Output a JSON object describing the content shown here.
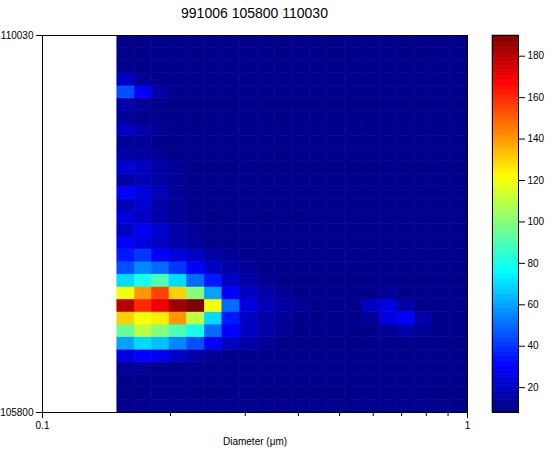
{
  "chart_data": {
    "type": "heatmap",
    "title": "991006 105800 110030",
    "x_label": "Diameter (μm)",
    "log": "x",
    "xlim": [
      0.1,
      1
    ],
    "xticks": [
      0.1,
      1
    ],
    "ylim": [
      105800,
      110030
    ],
    "yticks": [
      105800,
      110030
    ],
    "x_bins": [
      0.15,
      0.165,
      0.181,
      0.199,
      0.219,
      0.241,
      0.265,
      0.292,
      0.321,
      0.353,
      0.387,
      0.426,
      0.468,
      0.515,
      0.566,
      0.622,
      0.684,
      0.752,
      0.827,
      0.909,
      1.0
    ],
    "y_bins": [
      105800,
      105941,
      106082,
      106223,
      106364,
      106505,
      106646,
      106787,
      106928,
      107069,
      107210,
      107351,
      107492,
      107633,
      107774,
      107915,
      108056,
      108197,
      108338,
      108479,
      108620,
      108761,
      108902,
      109043,
      109184,
      109325,
      109466,
      109607,
      109748,
      109889,
      110030
    ],
    "z": [
      [
        10,
        10,
        10,
        10,
        10,
        10,
        10,
        10,
        10,
        10,
        10,
        10,
        10,
        10,
        10,
        10,
        10,
        10,
        10,
        10
      ],
      [
        10,
        10,
        10,
        10,
        10,
        10,
        10,
        10,
        10,
        10,
        10,
        10,
        10,
        10,
        10,
        10,
        10,
        10,
        10,
        10
      ],
      [
        10,
        10,
        10,
        10,
        10,
        10,
        10,
        10,
        10,
        10,
        10,
        10,
        10,
        10,
        10,
        10,
        10,
        10,
        10,
        10
      ],
      [
        12,
        12,
        10,
        10,
        10,
        10,
        10,
        10,
        10,
        10,
        10,
        10,
        10,
        10,
        10,
        10,
        10,
        10,
        10,
        10
      ],
      [
        25,
        30,
        28,
        20,
        15,
        12,
        10,
        10,
        10,
        10,
        10,
        10,
        10,
        10,
        10,
        10,
        10,
        10,
        10,
        10
      ],
      [
        60,
        70,
        65,
        55,
        45,
        30,
        20,
        15,
        12,
        10,
        10,
        10,
        10,
        10,
        10,
        10,
        10,
        10,
        10,
        10
      ],
      [
        95,
        110,
        100,
        90,
        80,
        50,
        30,
        20,
        15,
        12,
        10,
        10,
        10,
        10,
        10,
        12,
        15,
        12,
        10,
        10
      ],
      [
        130,
        120,
        125,
        140,
        110,
        70,
        35,
        20,
        15,
        12,
        10,
        10,
        10,
        10,
        12,
        25,
        30,
        15,
        10,
        10
      ],
      [
        180,
        160,
        170,
        185,
        190,
        120,
        50,
        25,
        18,
        14,
        12,
        10,
        10,
        10,
        20,
        25,
        15,
        10,
        10,
        10
      ],
      [
        120,
        140,
        155,
        130,
        100,
        60,
        30,
        20,
        15,
        12,
        10,
        10,
        10,
        10,
        10,
        12,
        10,
        10,
        10,
        10
      ],
      [
        70,
        80,
        90,
        70,
        50,
        35,
        20,
        15,
        12,
        10,
        10,
        10,
        10,
        10,
        10,
        10,
        10,
        10,
        10,
        10
      ],
      [
        45,
        55,
        50,
        40,
        30,
        20,
        15,
        12,
        10,
        10,
        10,
        10,
        10,
        10,
        10,
        10,
        10,
        10,
        10,
        10
      ],
      [
        35,
        40,
        30,
        25,
        20,
        15,
        12,
        10,
        10,
        10,
        10,
        10,
        10,
        10,
        10,
        10,
        10,
        10,
        10,
        10
      ],
      [
        30,
        25,
        20,
        15,
        12,
        10,
        10,
        10,
        10,
        10,
        10,
        10,
        10,
        10,
        10,
        10,
        10,
        10,
        10,
        10
      ],
      [
        20,
        28,
        22,
        15,
        12,
        10,
        10,
        10,
        10,
        10,
        10,
        10,
        10,
        10,
        10,
        10,
        10,
        10,
        10,
        10
      ],
      [
        25,
        20,
        15,
        12,
        10,
        10,
        10,
        10,
        10,
        10,
        10,
        10,
        10,
        10,
        10,
        10,
        10,
        10,
        10,
        10
      ],
      [
        18,
        22,
        15,
        12,
        10,
        10,
        10,
        10,
        10,
        10,
        10,
        10,
        10,
        10,
        10,
        10,
        10,
        10,
        10,
        10
      ],
      [
        30,
        25,
        18,
        12,
        10,
        10,
        10,
        10,
        10,
        10,
        10,
        10,
        10,
        10,
        10,
        10,
        10,
        10,
        10,
        10
      ],
      [
        15,
        18,
        14,
        12,
        10,
        10,
        10,
        10,
        10,
        10,
        10,
        10,
        10,
        10,
        10,
        10,
        10,
        10,
        10,
        10
      ],
      [
        22,
        20,
        15,
        12,
        10,
        10,
        10,
        10,
        10,
        10,
        10,
        10,
        10,
        10,
        10,
        10,
        10,
        10,
        10,
        10
      ],
      [
        15,
        14,
        12,
        10,
        10,
        10,
        10,
        10,
        10,
        10,
        10,
        10,
        10,
        10,
        10,
        10,
        10,
        10,
        10,
        10
      ],
      [
        12,
        12,
        10,
        10,
        10,
        10,
        10,
        10,
        10,
        10,
        10,
        10,
        10,
        10,
        10,
        10,
        10,
        10,
        10,
        10
      ],
      [
        20,
        15,
        12,
        10,
        10,
        10,
        10,
        10,
        10,
        10,
        10,
        10,
        10,
        10,
        10,
        10,
        10,
        10,
        10,
        10
      ],
      [
        12,
        10,
        10,
        10,
        10,
        10,
        10,
        10,
        10,
        10,
        10,
        10,
        10,
        10,
        10,
        10,
        10,
        10,
        10,
        10
      ],
      [
        15,
        12,
        10,
        10,
        10,
        10,
        10,
        10,
        10,
        10,
        10,
        10,
        10,
        10,
        10,
        10,
        10,
        10,
        10,
        10
      ],
      [
        45,
        30,
        15,
        10,
        10,
        10,
        10,
        10,
        10,
        10,
        10,
        10,
        10,
        10,
        10,
        10,
        10,
        10,
        10,
        10
      ],
      [
        20,
        12,
        10,
        10,
        10,
        10,
        10,
        10,
        10,
        10,
        10,
        10,
        10,
        10,
        10,
        10,
        10,
        10,
        10,
        10
      ],
      [
        10,
        10,
        10,
        10,
        10,
        10,
        10,
        10,
        10,
        10,
        10,
        10,
        10,
        10,
        10,
        10,
        10,
        10,
        10,
        10
      ],
      [
        10,
        10,
        10,
        10,
        10,
        10,
        10,
        10,
        10,
        10,
        10,
        10,
        10,
        10,
        10,
        10,
        10,
        10,
        10,
        10
      ],
      [
        10,
        10,
        10,
        10,
        10,
        10,
        10,
        10,
        10,
        10,
        10,
        10,
        10,
        10,
        10,
        10,
        10,
        10,
        10,
        10
      ]
    ],
    "clim": [
      8,
      190
    ],
    "cticks": [
      20,
      40,
      60,
      80,
      100,
      120,
      140,
      160,
      180
    ]
  }
}
